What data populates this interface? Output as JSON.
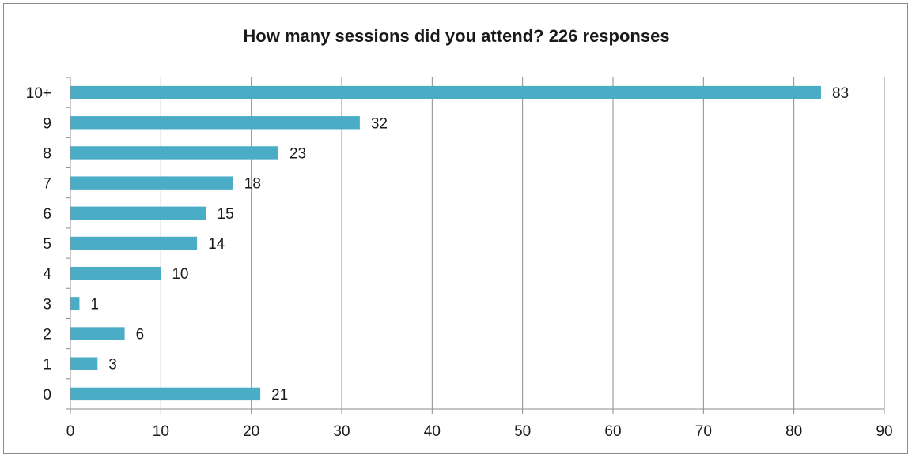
{
  "chart_data": {
    "type": "bar",
    "orientation": "horizontal",
    "title": "How many sessions did you attend? 226 responses",
    "categories": [
      "0",
      "1",
      "2",
      "3",
      "4",
      "5",
      "6",
      "7",
      "8",
      "9",
      "10+"
    ],
    "values": [
      21,
      3,
      6,
      1,
      10,
      14,
      15,
      18,
      23,
      32,
      83
    ],
    "xlim": [
      0,
      90
    ],
    "x_ticks": [
      0,
      10,
      20,
      30,
      40,
      50,
      60,
      70,
      80,
      90
    ],
    "grid": "vertical",
    "legend": "none",
    "bar_color": "#4bacc6",
    "data_labels": true
  }
}
